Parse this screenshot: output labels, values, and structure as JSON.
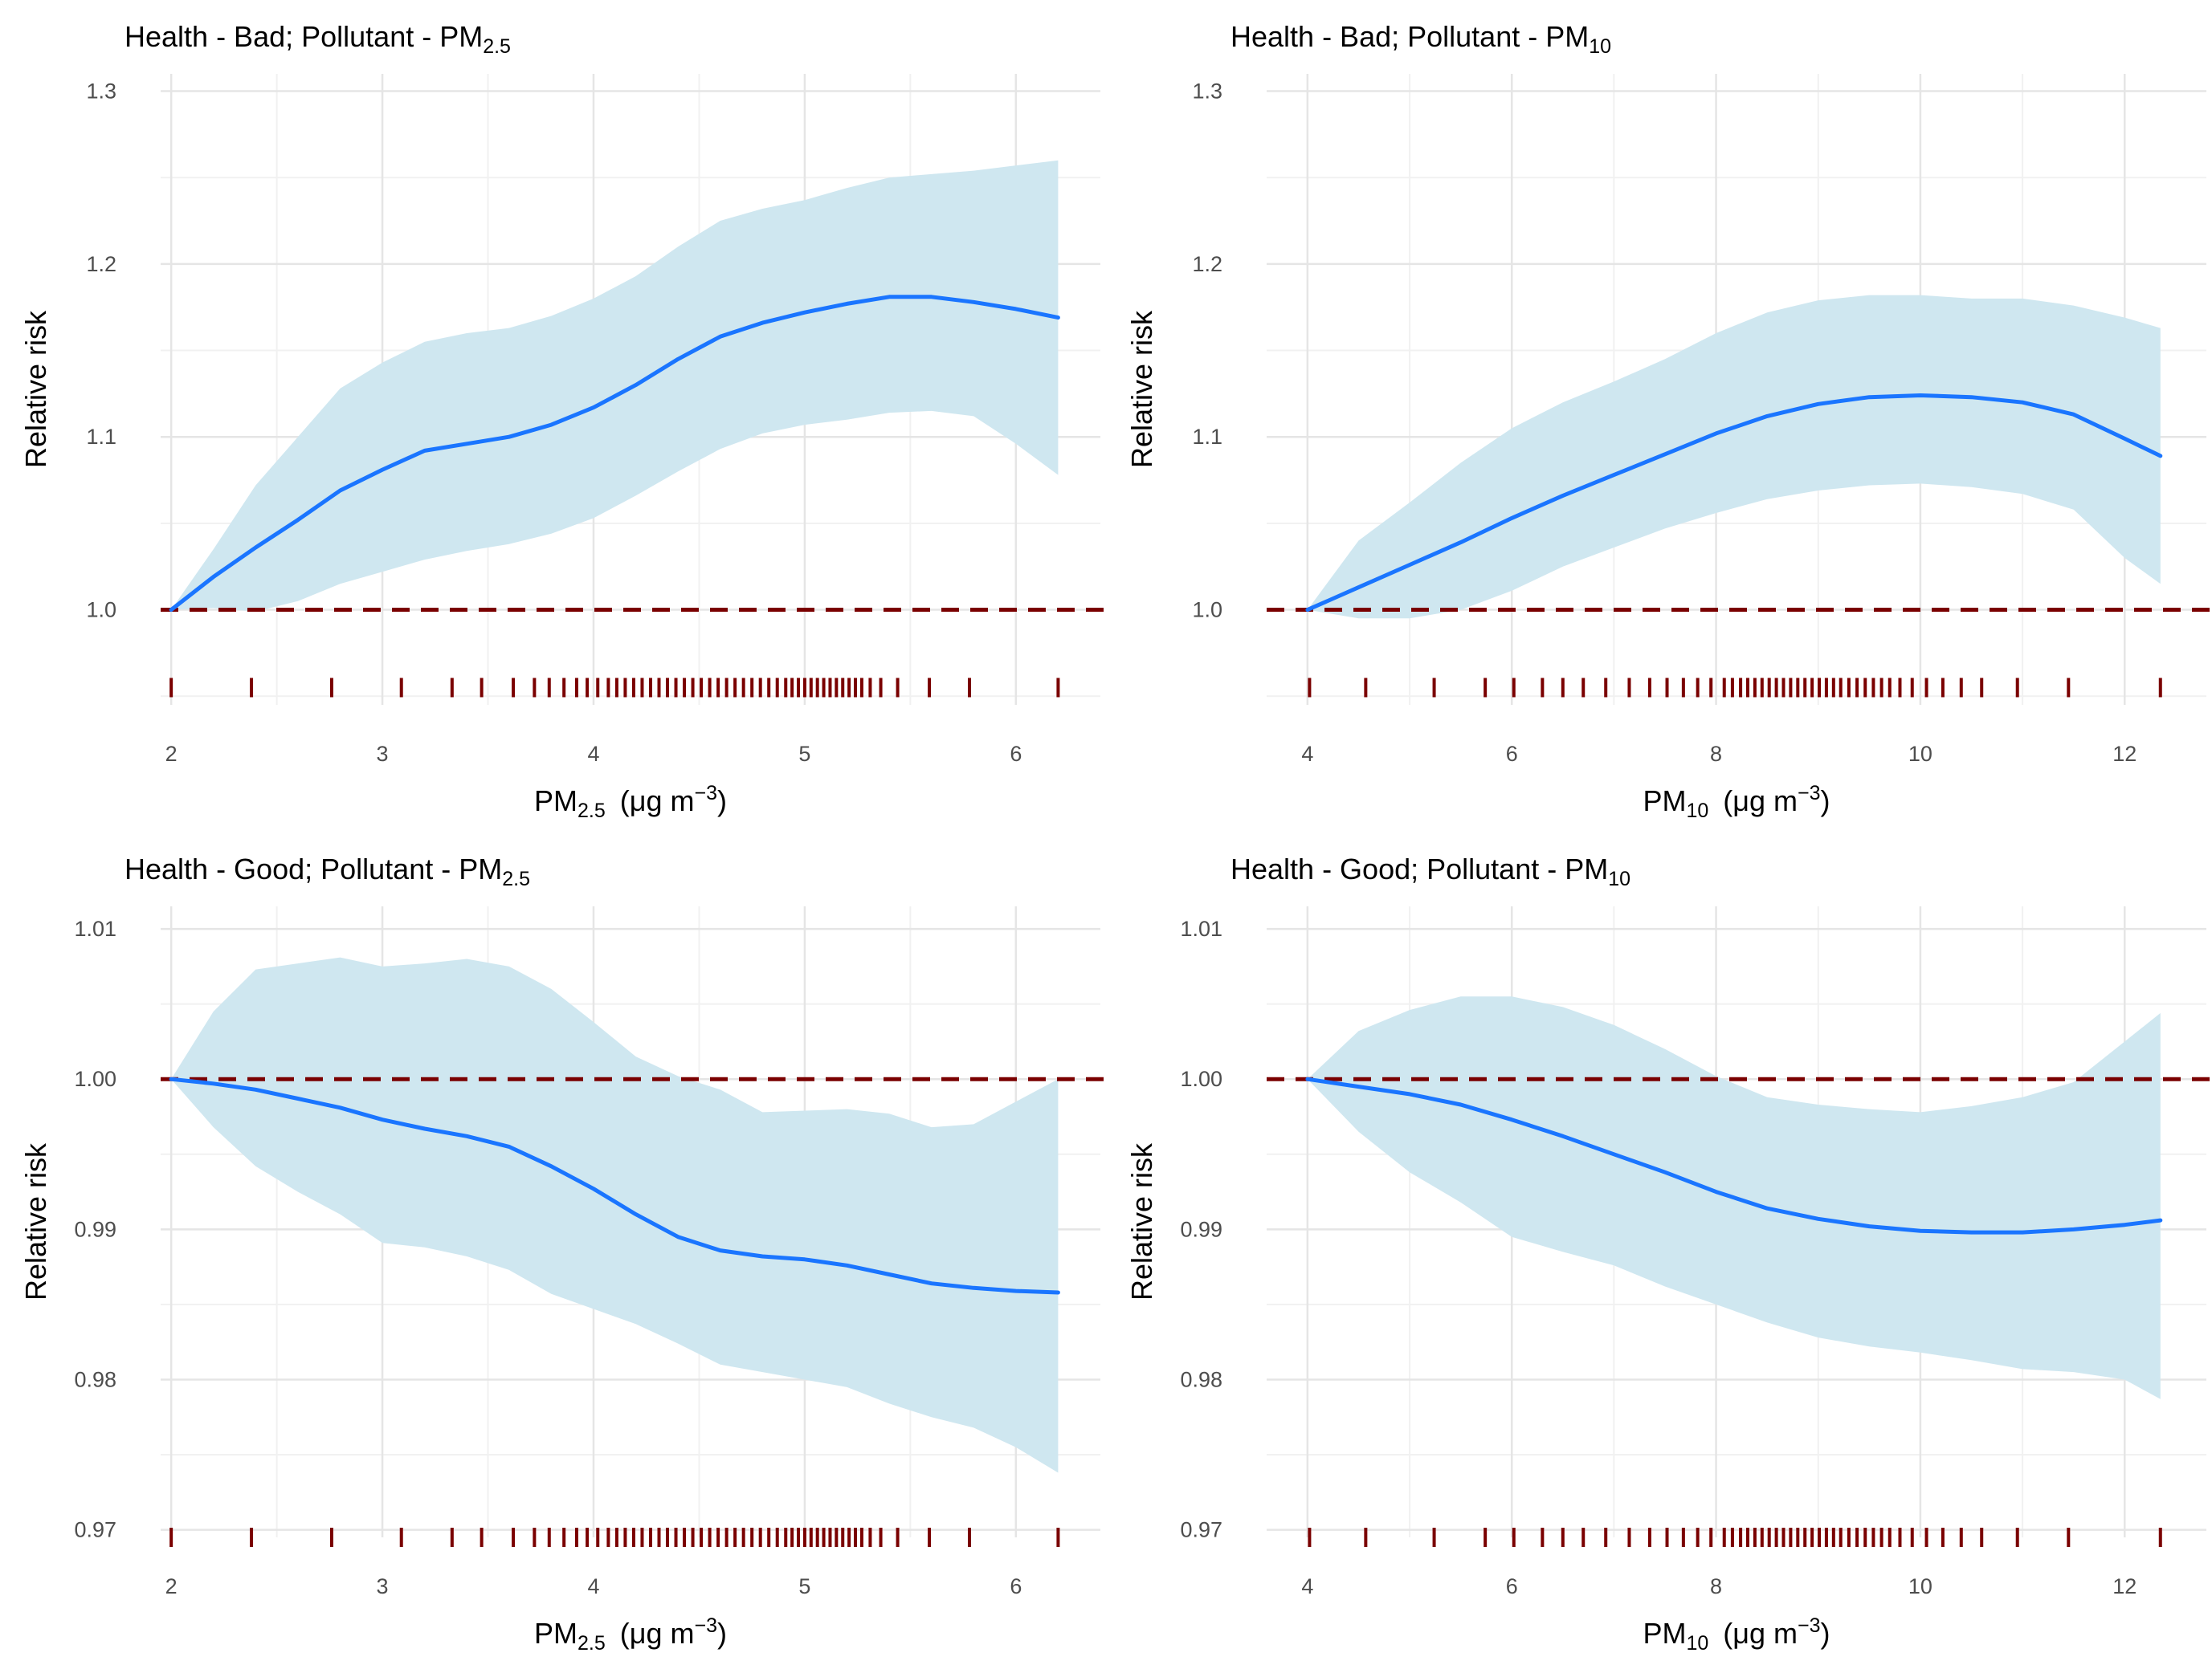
{
  "figure": {
    "layout": "2x2 grid"
  },
  "chart_data": [
    {
      "id": "bad-pm25",
      "type": "line",
      "title": {
        "prefix": "Health - Bad; Pollutant - ",
        "pollutant": "PM",
        "sub": "2.5"
      },
      "xlabel": {
        "pollutant": "PM",
        "sub": "2.5",
        "unit": "(μg m",
        "exp": "−3",
        "close": ")"
      },
      "ylabel": "Relative risk",
      "xlim": [
        1.95,
        6.4
      ],
      "ylim": [
        0.945,
        1.31
      ],
      "xticks": [
        2,
        3,
        4,
        5,
        6
      ],
      "xtick_labels": [
        "2",
        "3",
        "4",
        "5",
        "6"
      ],
      "yticks": [
        1.0,
        1.1,
        1.2,
        1.3
      ],
      "ytick_labels": [
        "1.0",
        "1.1",
        "1.2",
        "1.3"
      ],
      "reference_line": 1.0,
      "rug_y": 0.955,
      "series": [
        {
          "name": "Relative risk",
          "x": [
            2.0,
            2.2,
            2.4,
            2.6,
            2.8,
            3.0,
            3.2,
            3.4,
            3.6,
            3.8,
            4.0,
            4.2,
            4.4,
            4.6,
            4.8,
            5.0,
            5.2,
            5.4,
            5.6,
            5.8,
            6.0,
            6.2
          ],
          "y": [
            1.0,
            1.019,
            1.036,
            1.052,
            1.069,
            1.081,
            1.092,
            1.096,
            1.1,
            1.107,
            1.117,
            1.13,
            1.145,
            1.158,
            1.166,
            1.172,
            1.177,
            1.181,
            1.181,
            1.178,
            1.174,
            1.169
          ]
        },
        {
          "name": "Upper bound",
          "x": [
            2.0,
            2.2,
            2.4,
            2.6,
            2.8,
            3.0,
            3.2,
            3.4,
            3.6,
            3.8,
            4.0,
            4.2,
            4.4,
            4.6,
            4.8,
            5.0,
            5.2,
            5.4,
            5.6,
            5.8,
            6.0,
            6.2
          ],
          "y": [
            1.0,
            1.035,
            1.072,
            1.1,
            1.128,
            1.143,
            1.155,
            1.16,
            1.163,
            1.17,
            1.18,
            1.193,
            1.21,
            1.225,
            1.232,
            1.237,
            1.244,
            1.25,
            1.252,
            1.254,
            1.257,
            1.26
          ]
        },
        {
          "name": "Lower bound",
          "x": [
            2.0,
            2.2,
            2.4,
            2.6,
            2.8,
            3.0,
            3.2,
            3.4,
            3.6,
            3.8,
            4.0,
            4.2,
            4.4,
            4.6,
            4.8,
            5.0,
            5.2,
            5.4,
            5.6,
            5.8,
            6.0,
            6.2
          ],
          "y": [
            1.0,
            1.001,
            0.999,
            1.005,
            1.015,
            1.022,
            1.029,
            1.034,
            1.038,
            1.044,
            1.053,
            1.066,
            1.08,
            1.093,
            1.102,
            1.107,
            1.11,
            1.114,
            1.115,
            1.112,
            1.096,
            1.078
          ]
        }
      ],
      "rug": [
        2.0,
        2.38,
        2.76,
        3.09,
        3.33,
        3.47,
        3.62,
        3.72,
        3.79,
        3.86,
        3.92,
        3.97,
        4.02,
        4.07,
        4.11,
        4.15,
        4.19,
        4.23,
        4.27,
        4.31,
        4.35,
        4.39,
        4.43,
        4.47,
        4.51,
        4.55,
        4.59,
        4.63,
        4.67,
        4.71,
        4.75,
        4.79,
        4.83,
        4.87,
        4.91,
        4.94,
        4.97,
        5.0,
        5.03,
        5.06,
        5.09,
        5.12,
        5.15,
        5.18,
        5.21,
        5.24,
        5.27,
        5.31,
        5.36,
        5.44,
        5.59,
        5.78,
        6.2
      ]
    },
    {
      "id": "bad-pm10",
      "type": "line",
      "title": {
        "prefix": "Health - Bad; Pollutant - ",
        "pollutant": "PM",
        "sub": "10"
      },
      "xlabel": {
        "pollutant": "PM",
        "sub": "10",
        "unit": "(μg m",
        "exp": "−3",
        "close": ")"
      },
      "ylabel": "Relative risk",
      "xlim": [
        3.6,
        12.8
      ],
      "ylim": [
        0.945,
        1.31
      ],
      "xticks": [
        4,
        6,
        8,
        10,
        12
      ],
      "xtick_labels": [
        "4",
        "6",
        "8",
        "10",
        "12"
      ],
      "yticks": [
        1.0,
        1.1,
        1.2,
        1.3
      ],
      "ytick_labels": [
        "1.0",
        "1.1",
        "1.2",
        "1.3"
      ],
      "reference_line": 1.0,
      "rug_y": 0.955,
      "series": [
        {
          "name": "Relative risk",
          "x": [
            4.0,
            4.5,
            5.0,
            5.5,
            6.0,
            6.5,
            7.0,
            7.5,
            8.0,
            8.5,
            9.0,
            9.5,
            10.0,
            10.5,
            11.0,
            11.5,
            12.0,
            12.35
          ],
          "y": [
            1.0,
            1.013,
            1.026,
            1.039,
            1.053,
            1.066,
            1.078,
            1.09,
            1.102,
            1.112,
            1.119,
            1.123,
            1.124,
            1.123,
            1.12,
            1.113,
            1.099,
            1.089
          ]
        },
        {
          "name": "Upper bound",
          "x": [
            4.0,
            4.5,
            5.0,
            5.5,
            6.0,
            6.5,
            7.0,
            7.5,
            8.0,
            8.5,
            9.0,
            9.5,
            10.0,
            10.5,
            11.0,
            11.5,
            12.0,
            12.35
          ],
          "y": [
            1.0,
            1.04,
            1.062,
            1.085,
            1.105,
            1.12,
            1.132,
            1.145,
            1.16,
            1.172,
            1.179,
            1.182,
            1.182,
            1.18,
            1.18,
            1.176,
            1.169,
            1.163
          ]
        },
        {
          "name": "Lower bound",
          "x": [
            4.0,
            4.5,
            5.0,
            5.5,
            6.0,
            6.5,
            7.0,
            7.5,
            8.0,
            8.5,
            9.0,
            9.5,
            10.0,
            10.5,
            11.0,
            11.5,
            12.0,
            12.35
          ],
          "y": [
            1.0,
            0.995,
            0.995,
            1.0,
            1.011,
            1.025,
            1.036,
            1.047,
            1.056,
            1.064,
            1.069,
            1.072,
            1.073,
            1.071,
            1.067,
            1.058,
            1.03,
            1.015
          ]
        }
      ],
      "rug": [
        4.02,
        4.57,
        5.24,
        5.74,
        6.02,
        6.3,
        6.5,
        6.7,
        6.92,
        7.15,
        7.35,
        7.52,
        7.68,
        7.82,
        7.95,
        8.08,
        8.16,
        8.24,
        8.31,
        8.38,
        8.45,
        8.52,
        8.59,
        8.66,
        8.73,
        8.8,
        8.87,
        8.94,
        9.01,
        9.08,
        9.15,
        9.22,
        9.3,
        9.38,
        9.46,
        9.54,
        9.62,
        9.7,
        9.8,
        9.92,
        10.06,
        10.22,
        10.4,
        10.6,
        10.95,
        11.45,
        12.35
      ]
    },
    {
      "id": "good-pm25",
      "type": "line",
      "title": {
        "prefix": "Health - Good; Pollutant - ",
        "pollutant": "PM",
        "sub": "2.5"
      },
      "xlabel": {
        "pollutant": "PM",
        "sub": "2.5",
        "unit": "(μg m",
        "exp": "−3",
        "close": ")"
      },
      "ylabel": "Relative risk",
      "xlim": [
        1.95,
        6.4
      ],
      "ylim": [
        0.9695,
        1.0115
      ],
      "xticks": [
        2,
        3,
        4,
        5,
        6
      ],
      "xtick_labels": [
        "2",
        "3",
        "4",
        "5",
        "6"
      ],
      "yticks": [
        0.97,
        0.98,
        0.99,
        1.0,
        1.01
      ],
      "ytick_labels": [
        "0.97",
        "0.98",
        "0.99",
        "1.00",
        "1.01"
      ],
      "reference_line": 1.0,
      "rug_y": 0.9695,
      "series": [
        {
          "name": "Relative risk",
          "x": [
            2.0,
            2.2,
            2.4,
            2.6,
            2.8,
            3.0,
            3.2,
            3.4,
            3.6,
            3.8,
            4.0,
            4.2,
            4.4,
            4.6,
            4.8,
            5.0,
            5.2,
            5.4,
            5.6,
            5.8,
            6.0,
            6.2
          ],
          "y": [
            1.0,
            0.9997,
            0.9993,
            0.9987,
            0.9981,
            0.9973,
            0.9967,
            0.9962,
            0.9955,
            0.9942,
            0.9927,
            0.991,
            0.9895,
            0.9886,
            0.9882,
            0.988,
            0.9876,
            0.987,
            0.9864,
            0.9861,
            0.9859,
            0.9858
          ]
        },
        {
          "name": "Upper bound",
          "x": [
            2.0,
            2.2,
            2.4,
            2.6,
            2.8,
            3.0,
            3.2,
            3.4,
            3.6,
            3.8,
            4.0,
            4.2,
            4.4,
            4.6,
            4.8,
            5.0,
            5.2,
            5.4,
            5.6,
            5.8,
            6.0,
            6.2
          ],
          "y": [
            1.0,
            1.0045,
            1.0073,
            1.0077,
            1.0081,
            1.0075,
            1.0077,
            1.008,
            1.0075,
            1.006,
            1.0038,
            1.0015,
            1.0002,
            0.9993,
            0.9978,
            0.9979,
            0.998,
            0.9977,
            0.9968,
            0.997,
            0.9985,
            1.0
          ]
        },
        {
          "name": "Lower bound",
          "x": [
            2.0,
            2.2,
            2.4,
            2.6,
            2.8,
            3.0,
            3.2,
            3.4,
            3.6,
            3.8,
            4.0,
            4.2,
            4.4,
            4.6,
            4.8,
            5.0,
            5.2,
            5.4,
            5.6,
            5.8,
            6.0,
            6.2
          ],
          "y": [
            1.0,
            0.9968,
            0.9942,
            0.9925,
            0.991,
            0.9891,
            0.9888,
            0.9882,
            0.9873,
            0.9857,
            0.9847,
            0.9837,
            0.9824,
            0.981,
            0.9805,
            0.98,
            0.9795,
            0.9784,
            0.9775,
            0.9768,
            0.9755,
            0.9738
          ]
        }
      ],
      "rug": [
        2.0,
        2.38,
        2.76,
        3.09,
        3.33,
        3.47,
        3.62,
        3.72,
        3.79,
        3.86,
        3.92,
        3.97,
        4.02,
        4.07,
        4.11,
        4.15,
        4.19,
        4.23,
        4.27,
        4.31,
        4.35,
        4.39,
        4.43,
        4.47,
        4.51,
        4.55,
        4.59,
        4.63,
        4.67,
        4.71,
        4.75,
        4.79,
        4.83,
        4.87,
        4.91,
        4.94,
        4.97,
        5.0,
        5.03,
        5.06,
        5.09,
        5.12,
        5.15,
        5.18,
        5.21,
        5.24,
        5.27,
        5.31,
        5.36,
        5.44,
        5.59,
        5.78,
        6.2
      ]
    },
    {
      "id": "good-pm10",
      "type": "line",
      "title": {
        "prefix": "Health - Good; Pollutant - ",
        "pollutant": "PM",
        "sub": "10"
      },
      "xlabel": {
        "pollutant": "PM",
        "sub": "10",
        "unit": "(μg m",
        "exp": "−3",
        "close": ")"
      },
      "ylabel": "Relative risk",
      "xlim": [
        3.6,
        12.8
      ],
      "ylim": [
        0.9695,
        1.0115
      ],
      "xticks": [
        4,
        6,
        8,
        10,
        12
      ],
      "xtick_labels": [
        "4",
        "6",
        "8",
        "10",
        "12"
      ],
      "yticks": [
        0.97,
        0.98,
        0.99,
        1.0,
        1.01
      ],
      "ytick_labels": [
        "0.97",
        "0.98",
        "0.99",
        "1.00",
        "1.01"
      ],
      "reference_line": 1.0,
      "rug_y": 0.9695,
      "series": [
        {
          "name": "Relative risk",
          "x": [
            4.0,
            4.5,
            5.0,
            5.5,
            6.0,
            6.5,
            7.0,
            7.5,
            8.0,
            8.5,
            9.0,
            9.5,
            10.0,
            10.5,
            11.0,
            11.5,
            12.0,
            12.35
          ],
          "y": [
            1.0,
            0.9995,
            0.999,
            0.9983,
            0.9973,
            0.9962,
            0.995,
            0.9938,
            0.9925,
            0.9914,
            0.9907,
            0.9902,
            0.9899,
            0.9898,
            0.9898,
            0.99,
            0.9903,
            0.9906
          ]
        },
        {
          "name": "Upper bound",
          "x": [
            4.0,
            4.5,
            5.0,
            5.5,
            6.0,
            6.5,
            7.0,
            7.5,
            8.0,
            8.5,
            9.0,
            9.5,
            10.0,
            10.5,
            11.0,
            11.5,
            12.0,
            12.35
          ],
          "y": [
            1.0,
            1.0032,
            1.0046,
            1.0055,
            1.0055,
            1.0048,
            1.0036,
            1.002,
            1.0002,
            0.9988,
            0.9983,
            0.998,
            0.9978,
            0.9982,
            0.9988,
            0.9998,
            1.0025,
            1.0044
          ]
        },
        {
          "name": "Lower bound",
          "x": [
            4.0,
            4.5,
            5.0,
            5.5,
            6.0,
            6.5,
            7.0,
            7.5,
            8.0,
            8.5,
            9.0,
            9.5,
            10.0,
            10.5,
            11.0,
            11.5,
            12.0,
            12.35
          ],
          "y": [
            1.0,
            0.9965,
            0.9938,
            0.9918,
            0.9895,
            0.9885,
            0.9876,
            0.9862,
            0.985,
            0.9838,
            0.9828,
            0.9822,
            0.9818,
            0.9813,
            0.9807,
            0.9805,
            0.98,
            0.9787
          ]
        }
      ],
      "rug": [
        4.02,
        4.57,
        5.24,
        5.74,
        6.02,
        6.3,
        6.5,
        6.7,
        6.92,
        7.15,
        7.35,
        7.52,
        7.68,
        7.82,
        7.95,
        8.08,
        8.16,
        8.24,
        8.31,
        8.38,
        8.45,
        8.52,
        8.59,
        8.66,
        8.73,
        8.8,
        8.87,
        8.94,
        9.01,
        9.08,
        9.15,
        9.22,
        9.3,
        9.38,
        9.46,
        9.54,
        9.62,
        9.7,
        9.8,
        9.92,
        10.06,
        10.22,
        10.4,
        10.6,
        10.95,
        11.45,
        12.35
      ]
    }
  ],
  "colors": {
    "line": "#1a75ff",
    "band": "#cfe7f0",
    "reference": "#7a0000",
    "rug": "#7a0000",
    "grid_major": "#e5e5e5",
    "grid_minor": "#f1f1f1",
    "axis_text": "#4d4d4d",
    "label_text": "#000000"
  }
}
